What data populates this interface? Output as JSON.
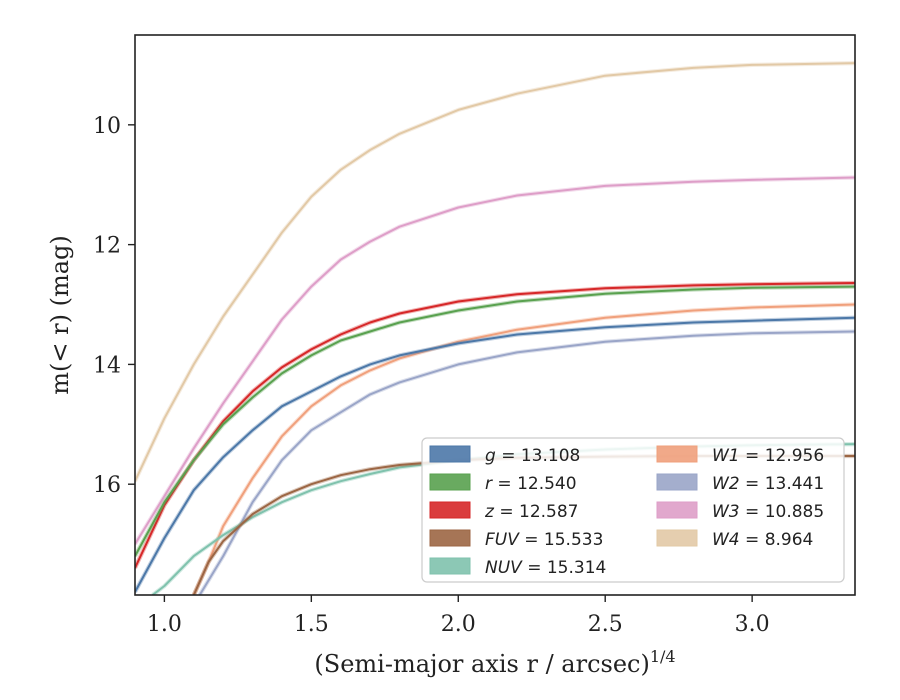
{
  "chart_data": {
    "type": "line",
    "title": "",
    "xlabel": "(Semi-major axis r / arcsec)",
    "xlabel_sup": "1/4",
    "ylabel": "m(< r) (mag)",
    "xlim": [
      0.9,
      3.35
    ],
    "ylim": [
      17.85,
      8.5
    ],
    "y_inverted": true,
    "grid": false,
    "legend_position": "lower-right",
    "xticks": [
      {
        "value": 1.0,
        "label": "1.0"
      },
      {
        "value": 1.5,
        "label": "1.5"
      },
      {
        "value": 2.0,
        "label": "2.0"
      },
      {
        "value": 2.5,
        "label": "2.5"
      },
      {
        "value": 3.0,
        "label": "3.0"
      }
    ],
    "yticks": [
      {
        "value": 10,
        "label": "10"
      },
      {
        "value": 12,
        "label": "12"
      },
      {
        "value": 14,
        "label": "14"
      },
      {
        "value": 16,
        "label": "16"
      }
    ],
    "series": [
      {
        "name": "g",
        "value": "13.108",
        "color": "#4c78a8",
        "x": [
          0.9,
          1.0,
          1.1,
          1.2,
          1.3,
          1.4,
          1.5,
          1.6,
          1.7,
          1.8,
          2.0,
          2.2,
          2.5,
          2.8,
          3.0,
          3.35
        ],
        "y": [
          17.8,
          16.9,
          16.1,
          15.55,
          15.1,
          14.7,
          14.45,
          14.2,
          14.0,
          13.85,
          13.65,
          13.5,
          13.38,
          13.3,
          13.27,
          13.22
        ]
      },
      {
        "name": "r",
        "value": "12.540",
        "color": "#59a14f",
        "x": [
          0.9,
          1.0,
          1.1,
          1.2,
          1.3,
          1.4,
          1.5,
          1.6,
          1.7,
          1.8,
          2.0,
          2.2,
          2.5,
          2.8,
          3.0,
          3.35
        ],
        "y": [
          17.2,
          16.3,
          15.6,
          15.0,
          14.55,
          14.15,
          13.85,
          13.6,
          13.45,
          13.3,
          13.1,
          12.95,
          12.82,
          12.75,
          12.72,
          12.7
        ]
      },
      {
        "name": "z",
        "value": "12.587",
        "color": "#d62728",
        "x": [
          0.9,
          1.0,
          1.1,
          1.2,
          1.3,
          1.4,
          1.5,
          1.6,
          1.7,
          1.8,
          2.0,
          2.2,
          2.5,
          2.8,
          3.0,
          3.35
        ],
        "y": [
          17.4,
          16.35,
          15.6,
          14.95,
          14.45,
          14.05,
          13.75,
          13.5,
          13.3,
          13.15,
          12.95,
          12.83,
          12.73,
          12.68,
          12.66,
          12.64
        ]
      },
      {
        "name": "FUV",
        "value": "15.533",
        "color": "#9c6644",
        "x": [
          1.1,
          1.15,
          1.2,
          1.3,
          1.4,
          1.5,
          1.6,
          1.7,
          1.8,
          2.0,
          2.2,
          2.5,
          2.8,
          3.0,
          3.35
        ],
        "y": [
          17.85,
          17.3,
          16.95,
          16.5,
          16.2,
          16.0,
          15.85,
          15.75,
          15.68,
          15.6,
          15.56,
          15.54,
          15.53,
          15.53,
          15.53
        ]
      },
      {
        "name": "NUV",
        "value": "15.314",
        "color": "#7fc2ad",
        "x": [
          0.96,
          1.0,
          1.1,
          1.2,
          1.3,
          1.4,
          1.5,
          1.6,
          1.7,
          1.8,
          2.0,
          2.2,
          2.5,
          2.8,
          3.0,
          3.35
        ],
        "y": [
          17.85,
          17.7,
          17.2,
          16.85,
          16.55,
          16.3,
          16.1,
          15.95,
          15.83,
          15.72,
          15.6,
          15.5,
          15.42,
          15.37,
          15.35,
          15.33
        ]
      },
      {
        "name": "W1",
        "value": "12.956",
        "color": "#f0a07c",
        "x": [
          1.1,
          1.15,
          1.2,
          1.3,
          1.4,
          1.5,
          1.6,
          1.7,
          1.8,
          2.0,
          2.2,
          2.5,
          2.8,
          3.0,
          3.35
        ],
        "y": [
          17.85,
          17.3,
          16.7,
          15.9,
          15.2,
          14.7,
          14.35,
          14.1,
          13.9,
          13.62,
          13.42,
          13.22,
          13.1,
          13.05,
          13.0
        ]
      },
      {
        "name": "W2",
        "value": "13.441",
        "color": "#9aa5c8",
        "x": [
          1.12,
          1.2,
          1.3,
          1.4,
          1.5,
          1.6,
          1.7,
          1.8,
          2.0,
          2.2,
          2.5,
          2.8,
          3.0,
          3.35
        ],
        "y": [
          17.85,
          17.2,
          16.3,
          15.6,
          15.1,
          14.8,
          14.5,
          14.3,
          14.0,
          13.8,
          13.62,
          13.52,
          13.48,
          13.45
        ]
      },
      {
        "name": "W3",
        "value": "10.885",
        "color": "#de9ec8",
        "x": [
          0.9,
          1.0,
          1.1,
          1.2,
          1.3,
          1.4,
          1.5,
          1.6,
          1.7,
          1.8,
          2.0,
          2.2,
          2.5,
          2.8,
          3.0,
          3.35
        ],
        "y": [
          17.0,
          16.2,
          15.4,
          14.65,
          13.95,
          13.25,
          12.7,
          12.25,
          11.95,
          11.7,
          11.38,
          11.18,
          11.02,
          10.95,
          10.92,
          10.88
        ]
      },
      {
        "name": "W4",
        "value": "8.964",
        "color": "#e2c9a6",
        "x": [
          0.9,
          1.0,
          1.1,
          1.2,
          1.3,
          1.4,
          1.5,
          1.6,
          1.7,
          1.8,
          2.0,
          2.2,
          2.5,
          2.8,
          3.0,
          3.35
        ],
        "y": [
          15.95,
          14.9,
          14.0,
          13.2,
          12.5,
          11.8,
          11.2,
          10.75,
          10.42,
          10.15,
          9.75,
          9.48,
          9.18,
          9.05,
          9.0,
          8.97
        ]
      }
    ]
  }
}
